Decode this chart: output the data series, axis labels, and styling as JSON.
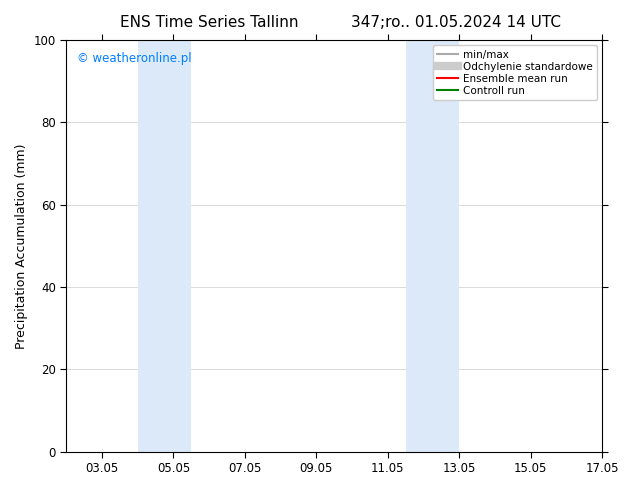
{
  "title_left": "ENS Time Series Tallinn",
  "title_right": "347;ro.. 01.05.2024 14 UTC",
  "ylabel": "Precipitation Accumulation (mm)",
  "ylim": [
    0,
    100
  ],
  "yticks": [
    0,
    20,
    40,
    60,
    80,
    100
  ],
  "xlim": [
    2.0,
    17.0
  ],
  "xtick_labels": [
    "03.05",
    "05.05",
    "07.05",
    "09.05",
    "11.05",
    "13.05",
    "15.05",
    "17.05"
  ],
  "xtick_positions": [
    3.0,
    5.0,
    7.0,
    9.0,
    11.0,
    13.0,
    15.0,
    17.0
  ],
  "watermark": "© weatheronline.pl",
  "watermark_color": "#007FFF",
  "background_color": "#ffffff",
  "shaded_regions": [
    {
      "x_start": 4.0,
      "x_end": 5.5,
      "color": "#dce9f8"
    },
    {
      "x_start": 11.5,
      "x_end": 13.0,
      "color": "#dce9f8"
    }
  ],
  "legend_entries": [
    {
      "label": "min/max",
      "color": "#aaaaaa",
      "lw": 1.5
    },
    {
      "label": "Odchylenie standardowe",
      "color": "#cccccc",
      "lw": 6
    },
    {
      "label": "Ensemble mean run",
      "color": "#ff0000",
      "lw": 1.5
    },
    {
      "label": "Controll run",
      "color": "#008000",
      "lw": 1.5
    }
  ],
  "grid_color": "#cccccc",
  "title_fontsize": 11,
  "ylabel_fontsize": 9,
  "tick_fontsize": 8.5,
  "legend_fontsize": 7.5,
  "watermark_fontsize": 8.5
}
